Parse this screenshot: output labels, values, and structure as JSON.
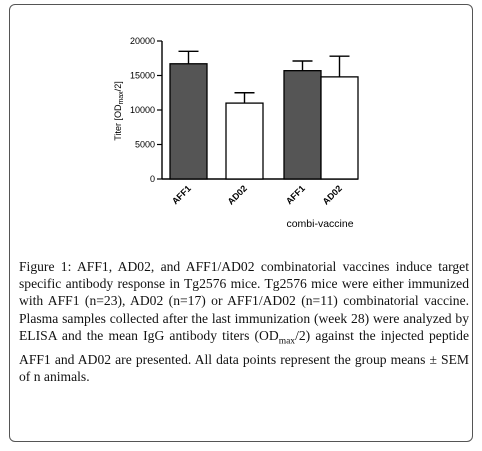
{
  "chart_data": {
    "type": "bar",
    "categories": [
      "AFF1",
      "AD02",
      "AFF1",
      "AD02"
    ],
    "values": [
      16700,
      11000,
      15700,
      14800
    ],
    "errors": [
      1800,
      1500,
      1400,
      3000
    ],
    "bar_colors": [
      "#555555",
      "#ffffff",
      "#555555",
      "#ffffff"
    ],
    "ylabel": "Titer [OD",
    "ylabel_sub": "max",
    "ylabel_tail": "/2]",
    "ylim": [
      0,
      20000
    ],
    "yticks": [
      0,
      5000,
      10000,
      15000,
      20000
    ],
    "ytick_labels": [
      "0",
      "5000",
      "10000",
      "15000",
      "20000"
    ],
    "group_label": "combi-vaccine",
    "grid": false
  },
  "caption": {
    "lead": "Figure 1:",
    "part1": " AFF1, AD02, and AFF1/AD02 combinatorial vaccines induce target specific antibody response in Tg2576 mice. Tg2576 mice were either immunized with AFF1 (n=23), AD02 (n=17) or AFF1/AD02 (n=11) combinatorial vaccine. Plasma samples collected after the last immunization (week 28) were analyzed by ELISA and the mean IgG antibody titers (OD",
    "sub": "max",
    "part2": "/2) against the injected peptide AFF1 and AD02 are presented. All data points represent the group means ± SEM of n animals."
  }
}
